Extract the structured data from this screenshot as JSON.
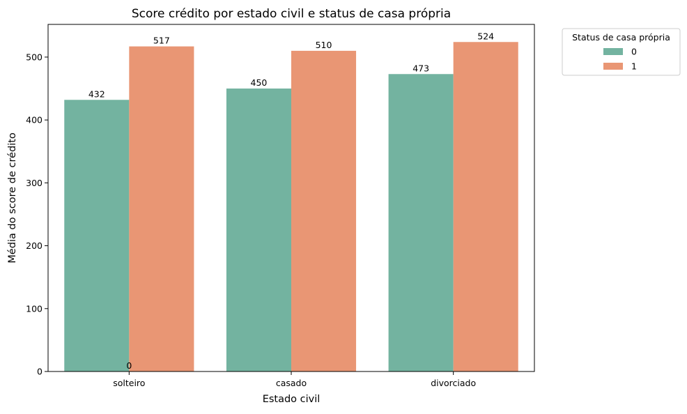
{
  "chart_data": {
    "type": "bar",
    "title": "Score crédito por estado civil e status de casa própria",
    "xlabel": "Estado civil",
    "ylabel": "Média do score de crédito",
    "categories": [
      "solteiro",
      "casado",
      "divorciado"
    ],
    "series": [
      {
        "name": "0",
        "values": [
          432,
          450,
          473
        ],
        "color": "#73b3a0"
      },
      {
        "name": "1",
        "values": [
          517,
          510,
          524
        ],
        "color": "#e99674"
      }
    ],
    "ylim": [
      0,
      552
    ],
    "yticks": [
      0,
      100,
      200,
      300,
      400,
      500
    ],
    "extra_labels": [
      "0"
    ],
    "legend": {
      "title": "Status de casa própria",
      "position": "outside-top-right"
    },
    "grid": false
  }
}
